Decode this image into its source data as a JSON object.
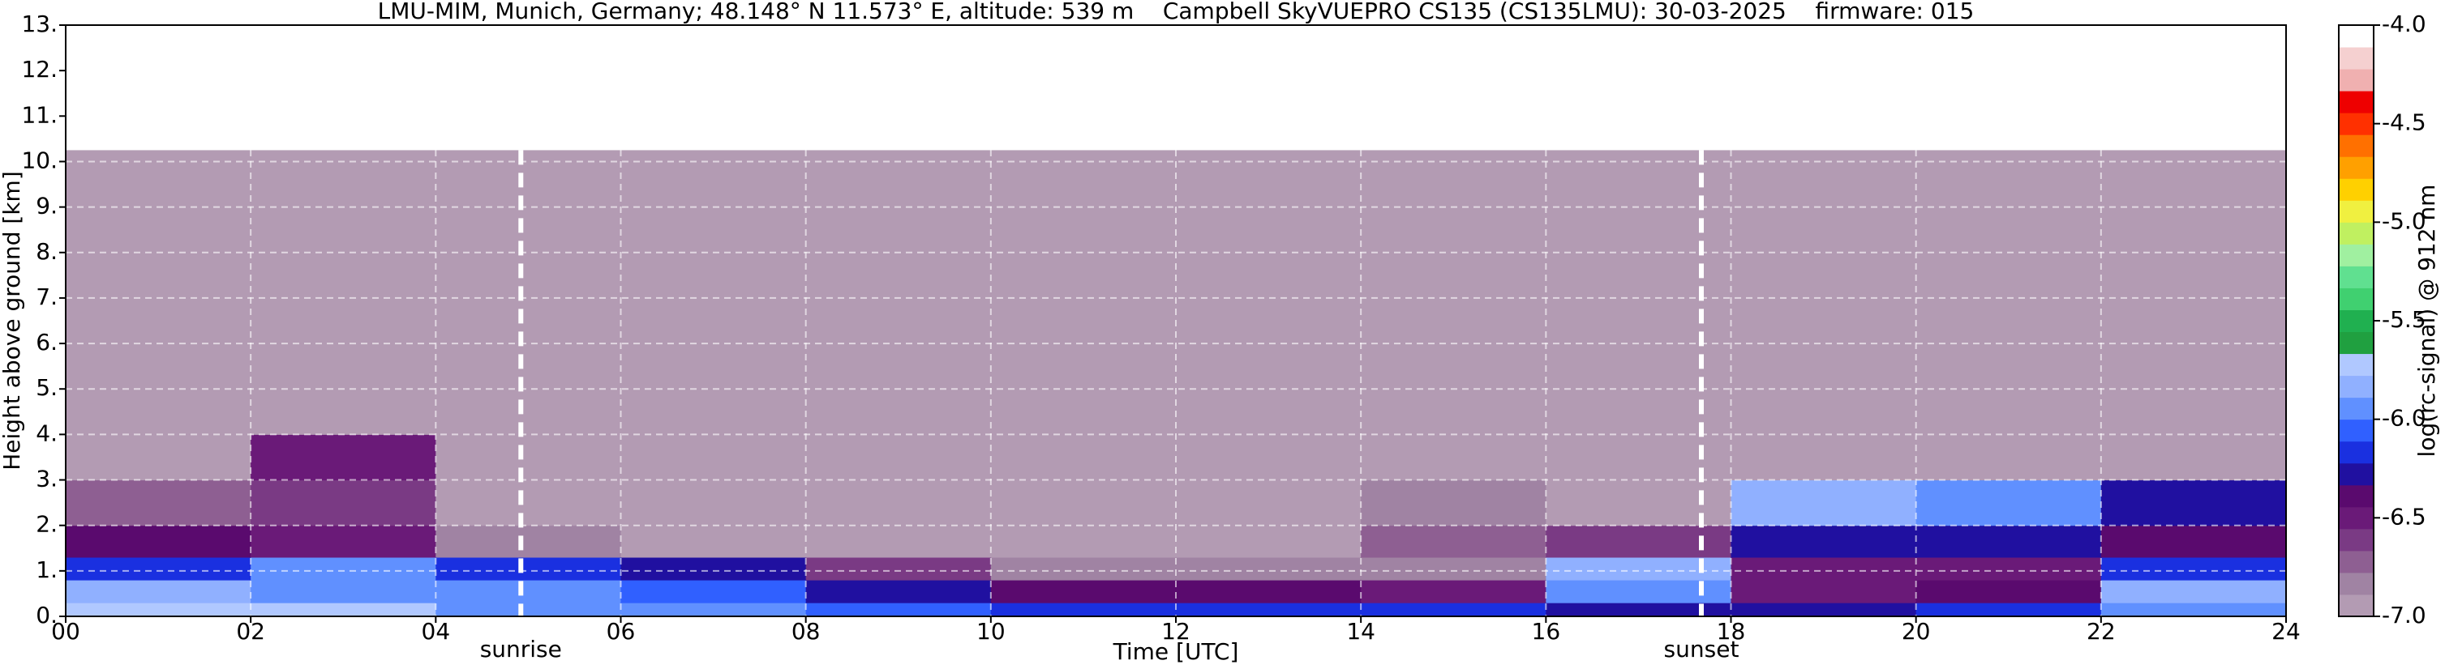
{
  "chart_data": {
    "type": "heatmap",
    "title": "LMU-MIM, Munich, Germany; 48.148° N 11.573° E, altitude: 539 m    Campbell SkyVUEPRO CS135 (CS135LMU): 30-03-2025    firmware: 015",
    "xlabel": "Time [UTC]",
    "ylabel": "Height above ground [km]",
    "xlim": [
      0,
      24
    ],
    "ylim": [
      0,
      13
    ],
    "xticks": [
      {
        "value": 0,
        "label": "00"
      },
      {
        "value": 2,
        "label": "02"
      },
      {
        "value": 4,
        "label": "04"
      },
      {
        "value": 6,
        "label": "06"
      },
      {
        "value": 8,
        "label": "08"
      },
      {
        "value": 10,
        "label": "10"
      },
      12,
      14,
      16,
      18,
      20,
      22,
      24
    ],
    "yticks": [
      {
        "value": 0,
        "label": "0."
      },
      {
        "value": 1,
        "label": "1."
      },
      {
        "value": 2,
        "label": "2."
      },
      {
        "value": 3,
        "label": "3."
      },
      {
        "value": 4,
        "label": "4."
      },
      {
        "value": 5,
        "label": "5."
      },
      {
        "value": 6,
        "label": "6."
      },
      {
        "value": 7,
        "label": "7."
      },
      {
        "value": 8,
        "label": "8."
      },
      {
        "value": 9,
        "label": "9."
      },
      {
        "value": 10,
        "label": "10."
      },
      {
        "value": 11,
        "label": "11."
      },
      {
        "value": 12,
        "label": "12."
      },
      {
        "value": 13,
        "label": "13."
      }
    ],
    "grid": true,
    "xbins": [
      0,
      2,
      4,
      6,
      8,
      10,
      12,
      14,
      16,
      18,
      20,
      22,
      24
    ],
    "ybins": [
      0,
      0.3,
      0.8,
      1.3,
      2,
      3,
      4,
      10.25
    ],
    "values": [
      [
        -5.7,
        -5.7,
        -5.9,
        -6.0,
        -6.1,
        -6.2,
        -6.2,
        -6.2,
        -6.3,
        -6.3,
        -6.2,
        -5.9
      ],
      [
        -5.8,
        -5.9,
        -6.0,
        -6.1,
        -6.3,
        -6.4,
        -6.4,
        -6.5,
        -6.0,
        -6.5,
        -6.4,
        -5.8
      ],
      [
        -6.2,
        -6.0,
        -6.2,
        -6.3,
        -6.6,
        -6.8,
        -6.8,
        -6.8,
        -5.8,
        -6.5,
        -6.5,
        -6.2
      ],
      [
        -6.4,
        -6.5,
        -6.8,
        -6.9,
        -6.9,
        -6.9,
        -6.9,
        -6.7,
        -6.6,
        -6.3,
        -6.3,
        -6.4
      ],
      [
        -6.7,
        -6.6,
        -6.9,
        -6.9,
        -6.9,
        -6.9,
        -6.9,
        -6.8,
        -6.9,
        -5.8,
        -5.9,
        -6.3
      ],
      [
        -6.9,
        -6.5,
        -7.0,
        -7.0,
        -7.0,
        -7.0,
        -7.0,
        -7.0,
        -7.0,
        -6.9,
        -6.9,
        -6.9
      ],
      [
        -7.0,
        -7.0,
        -7.0,
        -7.0,
        -7.0,
        -7.0,
        -7.0,
        -7.0,
        -7.0,
        -7.0,
        -7.0,
        -7.0
      ]
    ],
    "clim": [
      -7,
      -4
    ],
    "cticks": [
      {
        "value": -7,
        "label": "-7.0"
      },
      {
        "value": -6.5,
        "label": "-6.5"
      },
      {
        "value": -6,
        "label": "-6.0"
      },
      {
        "value": -5.5,
        "label": "-5.5"
      },
      {
        "value": -5,
        "label": "-5.0"
      },
      {
        "value": -4.5,
        "label": "-4.5"
      },
      {
        "value": -4,
        "label": "-4.0"
      }
    ],
    "clabel": "log(rc-signal) @ 912 nm",
    "colors": [
      "#b39bb3",
      "#a083a3",
      "#8e5f92",
      "#7a3a84",
      "#6a1a78",
      "#5a0a6e",
      "#2010a0",
      "#1a30e0",
      "#3060ff",
      "#6090ff",
      "#90b0ff",
      "#b0c8ff",
      "#20a040",
      "#20b050",
      "#40d070",
      "#60e090",
      "#a0f0a0",
      "#c0f060",
      "#f0f040",
      "#ffd000",
      "#ffa000",
      "#ff7000",
      "#ff3000",
      "#ee0000",
      "#f0b0b0",
      "#f5d0d0",
      "#ffffff"
    ],
    "annotations": [
      {
        "label": "sunrise",
        "x": 4.92
      },
      {
        "label": "sunset",
        "x": 17.68
      }
    ]
  }
}
